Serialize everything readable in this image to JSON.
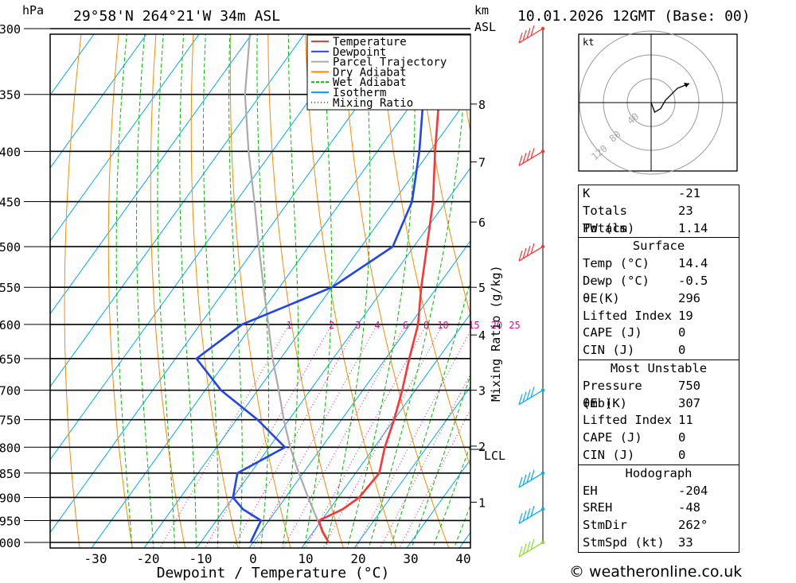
{
  "header": {
    "location": "29°58'N  264°21'W  34m  ASL",
    "datetime": "10.01.2026  12GMT  (Base: 00)",
    "hpa": "hPa",
    "km": "km",
    "asl": "ASL"
  },
  "legend": [
    {
      "label": "Temperature",
      "color": "#ff3333",
      "style": "solid"
    },
    {
      "label": "Dewpoint",
      "color": "#2244ee",
      "style": "solid"
    },
    {
      "label": "Parcel Trajectory",
      "color": "#aaaaaa",
      "style": "solid"
    },
    {
      "label": "Dry Adiabat",
      "color": "#ff8800",
      "style": "solid"
    },
    {
      "label": "Wet Adiabat",
      "color": "#00bb00",
      "style": "dashed"
    },
    {
      "label": "Isotherm",
      "color": "#00aaff",
      "style": "solid"
    },
    {
      "label": "Mixing Ratio",
      "color": "#dd1188",
      "style": "dotted"
    }
  ],
  "chart_data": {
    "type": "line",
    "title": "Skew-T log-P sounding",
    "xlabel": "Dewpoint / Temperature (°C)",
    "ylabel": "hPa",
    "xlim": [
      -40,
      40
    ],
    "ylim": [
      1000,
      300
    ],
    "x_ticks": [
      -30,
      -20,
      -10,
      0,
      10,
      20,
      30,
      40
    ],
    "pressure_levels": [
      1000,
      950,
      900,
      850,
      800,
      750,
      700,
      650,
      600,
      550,
      500,
      450,
      400,
      350,
      300
    ],
    "km_ticks": [
      {
        "label": "1",
        "p": 910
      },
      {
        "label": "2",
        "p": 798
      },
      {
        "label": "3",
        "p": 700
      },
      {
        "label": "4",
        "p": 615
      },
      {
        "label": "5",
        "p": 550
      },
      {
        "label": "6",
        "p": 472
      },
      {
        "label": "7",
        "p": 410
      },
      {
        "label": "8",
        "p": 358
      }
    ],
    "lcl": {
      "label": "LCL",
      "p": 804
    },
    "mixing_ratio_label": "Mixing Ratio (g/kg)",
    "mixing_ratio_values": [
      "1",
      "2",
      "3",
      "4",
      "6",
      "8",
      "10",
      "15",
      "20",
      "25"
    ],
    "series": [
      {
        "name": "Temperature",
        "color": "#ff3333",
        "points": [
          [
            1000,
            14.4
          ],
          [
            975,
            11.7
          ],
          [
            950,
            9.5
          ],
          [
            925,
            12.5
          ],
          [
            900,
            14.0
          ],
          [
            850,
            14.5
          ],
          [
            800,
            12.0
          ],
          [
            750,
            10.0
          ],
          [
            700,
            7.5
          ],
          [
            650,
            4.5
          ],
          [
            600,
            1.5
          ],
          [
            550,
            -3.0
          ],
          [
            500,
            -7.5
          ],
          [
            450,
            -12.5
          ],
          [
            400,
            -19.0
          ],
          [
            350,
            -26.0
          ],
          [
            300,
            -35.0
          ]
        ]
      },
      {
        "name": "Dewpoint",
        "color": "#2244ee",
        "points": [
          [
            1000,
            -0.5
          ],
          [
            950,
            -1.5
          ],
          [
            925,
            -6.5
          ],
          [
            900,
            -10.0
          ],
          [
            850,
            -12.5
          ],
          [
            800,
            -7.0
          ],
          [
            750,
            -16.0
          ],
          [
            700,
            -27.0
          ],
          [
            650,
            -36.0
          ],
          [
            600,
            -32.0
          ],
          [
            550,
            -20.0
          ],
          [
            500,
            -14.0
          ],
          [
            450,
            -16.5
          ],
          [
            400,
            -22.0
          ],
          [
            350,
            -29.0
          ],
          [
            300,
            -38.0
          ]
        ]
      },
      {
        "name": "Parcel Trajectory",
        "color": "#aaaaaa",
        "points": [
          [
            1000,
            14.4
          ],
          [
            950,
            9.3
          ],
          [
            900,
            4.3
          ],
          [
            850,
            -0.8
          ],
          [
            800,
            -6.0
          ],
          [
            750,
            -11.0
          ],
          [
            700,
            -16.0
          ],
          [
            650,
            -21.5
          ],
          [
            600,
            -27.0
          ],
          [
            550,
            -33.0
          ],
          [
            500,
            -39.5
          ],
          [
            450,
            -46.5
          ],
          [
            400,
            -54.5
          ],
          [
            350,
            -63.0
          ],
          [
            300,
            -71.0
          ]
        ]
      }
    ],
    "wind_barbs": [
      {
        "p": 300,
        "color": "#ff3333"
      },
      {
        "p": 400,
        "color": "#ff3333"
      },
      {
        "p": 500,
        "color": "#ff3333"
      },
      {
        "p": 700,
        "color": "#00aaff"
      },
      {
        "p": 850,
        "color": "#00aaff"
      },
      {
        "p": 925,
        "color": "#00aaff"
      },
      {
        "p": 1000,
        "color": "#88dd22"
      }
    ],
    "hodograph": {
      "unit": "kt",
      "ring_labels": [
        "40",
        "80",
        "120"
      ],
      "trace": [
        [
          0,
          0
        ],
        [
          3,
          -8
        ],
        [
          8,
          -5
        ],
        [
          12,
          2
        ],
        [
          22,
          12
        ],
        [
          32,
          16
        ]
      ]
    }
  },
  "indices": {
    "top": [
      {
        "label": "K",
        "value": "-21"
      },
      {
        "label": "Totals Totals",
        "value": "23"
      },
      {
        "label": "PW (cm)",
        "value": "1.14"
      }
    ],
    "surface": {
      "title": "Surface",
      "rows": [
        {
          "label": "Temp (°C)",
          "value": "14.4"
        },
        {
          "label": "Dewp (°C)",
          "value": "-0.5"
        },
        {
          "label": "θE(K)",
          "value": "296"
        },
        {
          "label": "Lifted Index",
          "value": "19"
        },
        {
          "label": "CAPE (J)",
          "value": "0"
        },
        {
          "label": "CIN (J)",
          "value": "0"
        }
      ]
    },
    "most_unstable": {
      "title": "Most Unstable",
      "rows": [
        {
          "label": "Pressure (mb)",
          "value": "750"
        },
        {
          "label": "θE (K)",
          "value": "307"
        },
        {
          "label": "Lifted Index",
          "value": "11"
        },
        {
          "label": "CAPE (J)",
          "value": "0"
        },
        {
          "label": "CIN (J)",
          "value": "0"
        }
      ]
    },
    "hodograph": {
      "title": "Hodograph",
      "rows": [
        {
          "label": "EH",
          "value": "-204"
        },
        {
          "label": "SREH",
          "value": "-48"
        },
        {
          "label": "StmDir",
          "value": "262°"
        },
        {
          "label": "StmSpd (kt)",
          "value": "33"
        }
      ]
    }
  },
  "copyright": "© weatheronline.co.uk"
}
